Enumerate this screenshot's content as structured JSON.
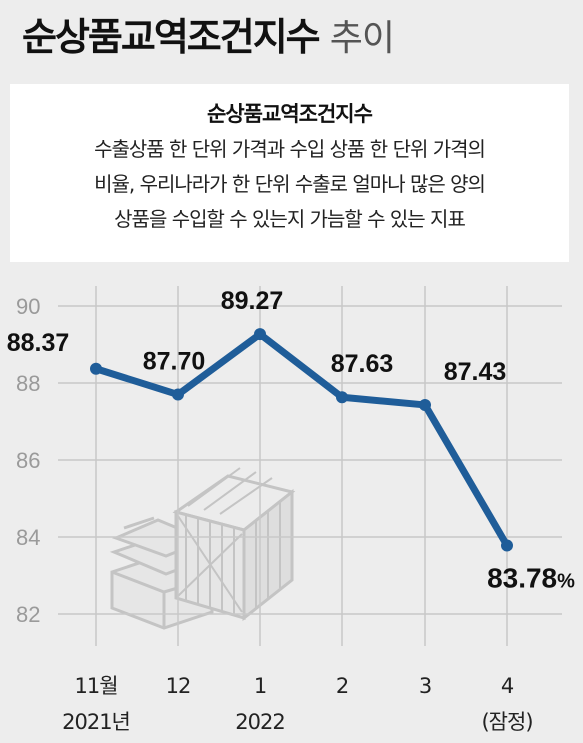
{
  "title": {
    "main": "순상품교역조건지수",
    "sub": "추이"
  },
  "definition": {
    "heading": "순상품교역조건지수",
    "lines": [
      "수출상품 한 단위 가격과 수입 상품 한 단위 가격의",
      "비율, 우리나라가 한 단위 수출로 얼마나 많은 양의",
      "상품을 수입할 수 있는지 가늠할 수 있는 지표"
    ]
  },
  "chart_data": {
    "type": "line",
    "categories": [
      "11월",
      "12",
      "1",
      "2",
      "3",
      "4"
    ],
    "category_sublabels": [
      "2021년",
      "",
      "2022",
      "",
      "",
      "(잠정)"
    ],
    "values": [
      88.37,
      87.7,
      89.27,
      87.63,
      87.43,
      83.78
    ],
    "value_labels": [
      "88.37",
      "87.70",
      "89.27",
      "87.63",
      "87.43",
      "83.78"
    ],
    "last_value_suffix": "%",
    "yticks": [
      82,
      84,
      86,
      88,
      90
    ],
    "ylim": [
      82,
      90
    ],
    "grid": true,
    "colors": {
      "line": "#1f5d99",
      "grid": "#c8c8c8",
      "axis_label": "#9a9a9a"
    }
  }
}
